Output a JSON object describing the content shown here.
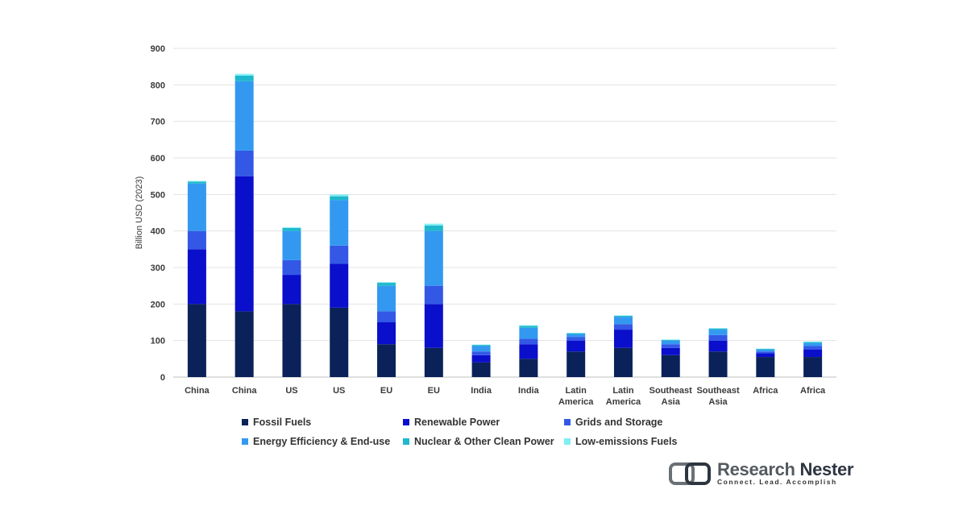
{
  "chart_data": {
    "type": "bar",
    "stacked": true,
    "ylabel": "Billion USD (2023)",
    "ylim": [
      0,
      900
    ],
    "yticks": [
      0,
      100,
      200,
      300,
      400,
      500,
      600,
      700,
      800,
      900
    ],
    "grid": true,
    "legend_position": "bottom",
    "categories": [
      "China",
      "China",
      "US",
      "US",
      "EU",
      "EU",
      "India",
      "India",
      "Latin America",
      "Latin America",
      "Southeast Asia",
      "Southeast Asia",
      "Africa",
      "Africa"
    ],
    "series": [
      {
        "name": "Fossil Fuels",
        "color": "#0a2259",
        "values": [
          200,
          180,
          200,
          190,
          90,
          80,
          40,
          50,
          70,
          80,
          60,
          70,
          55,
          55
        ]
      },
      {
        "name": "Renewable Power",
        "color": "#0a0fcc",
        "values": [
          150,
          370,
          80,
          120,
          60,
          120,
          20,
          40,
          30,
          50,
          20,
          30,
          10,
          20
        ]
      },
      {
        "name": "Grids and Storage",
        "color": "#3358e6",
        "values": [
          50,
          70,
          40,
          50,
          30,
          50,
          10,
          15,
          10,
          15,
          10,
          15,
          5,
          10
        ]
      },
      {
        "name": "Energy Efficiency & End-use",
        "color": "#3399f0",
        "values": [
          130,
          190,
          80,
          125,
          70,
          150,
          15,
          30,
          8,
          20,
          10,
          15,
          5,
          8
        ]
      },
      {
        "name": "Nuclear & Other Clean Power",
        "color": "#1fb8cc",
        "values": [
          5,
          15,
          8,
          10,
          8,
          15,
          3,
          5,
          2,
          3,
          2,
          3,
          2,
          3
        ]
      },
      {
        "name": "Low-emissions Fuels",
        "color": "#80eef5",
        "values": [
          2,
          5,
          2,
          5,
          2,
          5,
          1,
          2,
          1,
          1,
          1,
          1,
          1,
          1
        ]
      }
    ]
  },
  "logo": {
    "name_part1": "Research ",
    "name_part2": "Nester",
    "tagline": "Connect. Lead. Accomplish"
  }
}
